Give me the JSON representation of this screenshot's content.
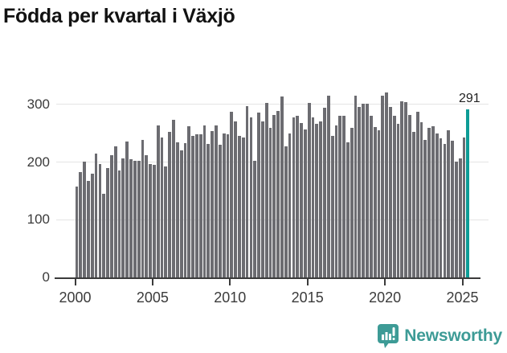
{
  "header": {
    "title": "Födda per kvartal i Växjö"
  },
  "footer": {
    "brand": "Newsworthy",
    "brand_color": "#3d9b96",
    "logo_icon": "speech-bubble-bar-chart-exclamation"
  },
  "chart_data": {
    "type": "bar",
    "title": "Födda per kvartal i Växjö",
    "frequency": "quarterly",
    "start_period": "2000-Q1",
    "end_period": "2025-Q2",
    "x_tick_labels": [
      "2000",
      "2005",
      "2010",
      "2015",
      "2020",
      "2025"
    ],
    "y_tick_labels": [
      "0",
      "100",
      "200",
      "300"
    ],
    "y_ticks": [
      0,
      100,
      200,
      300
    ],
    "x_tick_years": [
      2000,
      2005,
      2010,
      2015,
      2020,
      2025
    ],
    "ylim": [
      0,
      340
    ],
    "grid": "horizontal",
    "legend": false,
    "bar_color": "#6c6c71",
    "highlight_color": "#0d9c96",
    "axis_color": "#3b3b3b",
    "gridline_color": "#e4e4e4",
    "highlight_index": 101,
    "highlight_value": 291,
    "annotation_label": "291",
    "values": [
      157,
      183,
      201,
      168,
      180,
      215,
      197,
      145,
      190,
      212,
      228,
      186,
      207,
      236,
      205,
      203,
      202,
      239,
      212,
      197,
      195,
      264,
      243,
      193,
      253,
      274,
      234,
      220,
      233,
      262,
      246,
      249,
      249,
      264,
      232,
      254,
      264,
      230,
      250,
      248,
      287,
      271,
      246,
      243,
      297,
      278,
      203,
      286,
      271,
      303,
      259,
      282,
      289,
      314,
      228,
      250,
      278,
      280,
      268,
      257,
      303,
      278,
      266,
      271,
      295,
      315,
      246,
      264,
      281,
      281,
      234,
      259,
      316,
      296,
      301,
      302,
      281,
      261,
      255,
      316,
      321,
      296,
      280,
      266,
      305,
      304,
      282,
      253,
      287,
      269,
      239,
      259,
      262,
      250,
      241,
      232,
      255,
      237,
      201,
      207,
      243,
      291
    ]
  }
}
